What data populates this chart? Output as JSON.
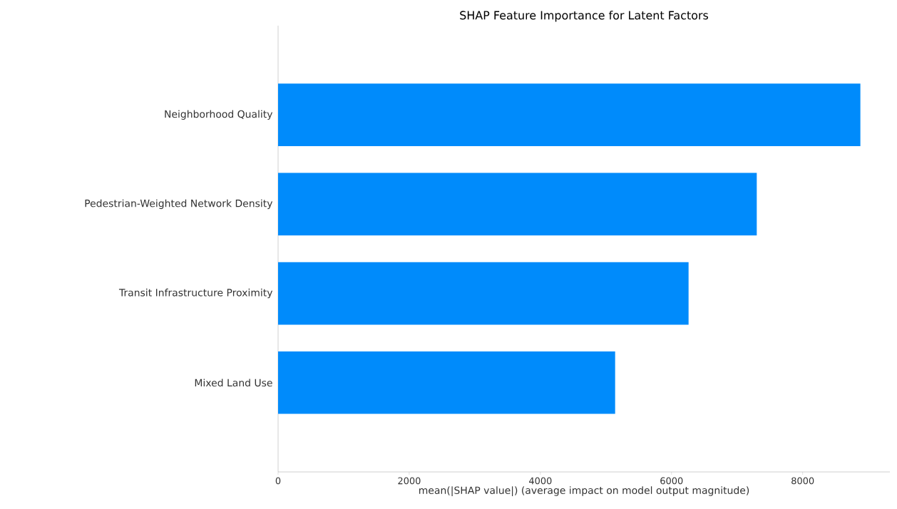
{
  "chart_data": {
    "type": "bar",
    "orientation": "horizontal",
    "title": "SHAP Feature Importance for Latent Factors",
    "xlabel": "mean(|SHAP value|) (average impact on model output magnitude)",
    "categories": [
      "Neighborhood Quality",
      "Pedestrian-Weighted Network Density",
      "Transit Infrastructure Proximity",
      "Mixed Land Use"
    ],
    "values": [
      8880,
      7300,
      6260,
      5140
    ],
    "color": "#008bfb",
    "xlim": [
      0,
      9330
    ],
    "xticks": [
      0,
      2000,
      4000,
      6000,
      8000
    ]
  }
}
